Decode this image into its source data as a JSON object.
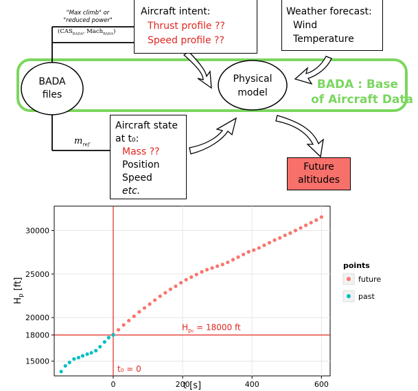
{
  "diagram": {
    "power_label_1": "\"Max climb\" or",
    "power_label_2": "\"reduced power\"",
    "cas_label": "(CAS",
    "cas_sub": "BADA",
    "cas_mid": ", Mach",
    "cas_sub2": "BADA",
    "cas_end": ")",
    "intent": {
      "title": "Aircraft intent:",
      "thrust": "Thrust profile ??",
      "speed": "Speed profile ??"
    },
    "weather": {
      "title": "Weather forecast:",
      "wind": "Wind",
      "temperature": "Temperature"
    },
    "bada_files_1": "BADA",
    "bada_files_2": "files",
    "physical_model_1": "Physical",
    "physical_model_2": "model",
    "bada_def_1": "BADA : Base",
    "bada_def_2": "of Aircraft Data",
    "m_ref": "m",
    "m_ref_sub": "ref",
    "state": {
      "title_1": "Aircraft state",
      "title_2": "at t₀:",
      "mass": "Mass ??",
      "position": "Position",
      "speed": "Speed",
      "etc": "etc."
    },
    "future_1": "Future",
    "future_2": "altitudes",
    "colors": {
      "green": "#7bd65f",
      "red_text": "#e0261f",
      "future_fill": "#f7706a"
    }
  },
  "chart_data": {
    "type": "scatter",
    "xlabel": "t [s]",
    "ylabel": "H",
    "ylabel_sub": "p",
    "ylabel_unit": " [ft]",
    "xlim": [
      -170,
      625
    ],
    "ylim": [
      13300,
      32800
    ],
    "x_ticks": [
      0,
      200,
      400,
      600
    ],
    "y_ticks": [
      15000,
      18000,
      20000,
      25000,
      30000
    ],
    "grid": true,
    "vline": {
      "x": 0,
      "label": "t₀ = 0"
    },
    "hline": {
      "y": 18000,
      "label": "H",
      "label_sub": "p₀",
      "label_rest": " = 18000 ft"
    },
    "legend": {
      "title": "points",
      "placement": "right"
    },
    "series": [
      {
        "name": "future",
        "color": "#f8766d",
        "x": [
          0,
          15,
          30,
          45,
          60,
          75,
          90,
          105,
          120,
          135,
          150,
          165,
          180,
          195,
          210,
          225,
          240,
          255,
          270,
          285,
          300,
          315,
          330,
          345,
          360,
          375,
          390,
          405,
          420,
          435,
          450,
          465,
          480,
          495,
          510,
          525,
          540,
          555,
          570,
          585,
          600
        ],
        "y": [
          18050,
          18600,
          19150,
          19650,
          20150,
          20650,
          21100,
          21550,
          22000,
          22450,
          22850,
          23250,
          23600,
          24000,
          24350,
          24650,
          24950,
          25250,
          25500,
          25700,
          25900,
          26100,
          26350,
          26650,
          26950,
          27250,
          27550,
          27750,
          28000,
          28300,
          28600,
          28900,
          29150,
          29450,
          29700,
          30000,
          30300,
          30600,
          30900,
          31200,
          31550
        ]
      },
      {
        "name": "past",
        "color": "#00bfc4",
        "x": [
          -150,
          -138,
          -126,
          -113,
          -100,
          -88,
          -75,
          -63,
          -50,
          -38,
          -25,
          -13,
          0
        ],
        "y": [
          13800,
          14450,
          14850,
          15250,
          15400,
          15600,
          15800,
          15950,
          16200,
          16650,
          17200,
          17700,
          18000
        ]
      }
    ]
  }
}
